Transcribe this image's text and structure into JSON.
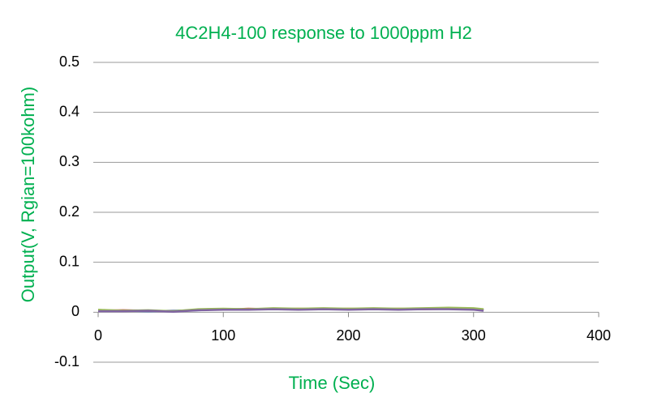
{
  "chart_data": {
    "type": "line",
    "title": "4C2H4-100 response to 1000ppm H2",
    "x_label": "Time (Sec)",
    "y_label": "Output(V, Rgian=100kohm)",
    "x": [
      0,
      20,
      40,
      60,
      80,
      100,
      120,
      140,
      160,
      180,
      200,
      220,
      240,
      260,
      280,
      300,
      308
    ],
    "series": [
      {
        "color": "#4472c4",
        "values": [
          0.004,
          0.003,
          0.002,
          0.003,
          0.004,
          0.006,
          0.006,
          0.007,
          0.006,
          0.007,
          0.006,
          0.007,
          0.006,
          0.007,
          0.008,
          0.007,
          0.005
        ]
      },
      {
        "color": "#c0504d",
        "values": [
          0.003,
          0.004,
          0.003,
          0.002,
          0.005,
          0.005,
          0.007,
          0.006,
          0.007,
          0.006,
          0.007,
          0.006,
          0.007,
          0.006,
          0.007,
          0.006,
          0.004
        ]
      },
      {
        "color": "#9bbb59",
        "values": [
          0.005,
          0.003,
          0.004,
          0.002,
          0.006,
          0.007,
          0.006,
          0.008,
          0.007,
          0.008,
          0.007,
          0.008,
          0.007,
          0.008,
          0.009,
          0.008,
          0.006
        ]
      },
      {
        "color": "#8064a2",
        "values": [
          0.002,
          0.002,
          0.003,
          0.001,
          0.004,
          0.005,
          0.005,
          0.006,
          0.005,
          0.006,
          0.005,
          0.006,
          0.005,
          0.006,
          0.006,
          0.005,
          0.003
        ]
      }
    ],
    "xlim": [
      0,
      400
    ],
    "xticks": [
      0,
      100,
      200,
      300,
      400
    ],
    "ylim": [
      -0.1,
      0.5
    ],
    "yticks": [
      -0.1,
      0,
      0.1,
      0.2,
      0.3,
      0.4,
      0.5
    ],
    "grid": true
  }
}
